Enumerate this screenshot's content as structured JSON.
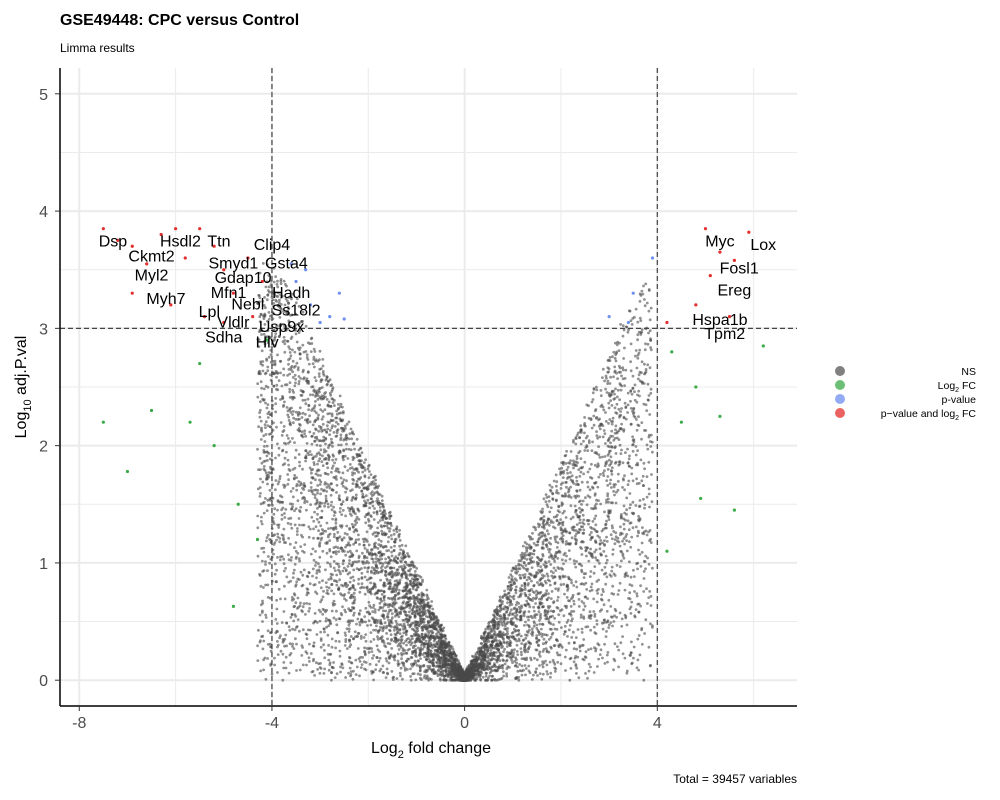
{
  "chart_data": {
    "type": "scatter",
    "title": "GSE49448: CPC versus Control",
    "subtitle": "Limma results",
    "xlabel": "Log2 fold change",
    "ylabel": "Log10 adj.P.val",
    "xlabel_parts": [
      "Log",
      "2",
      " fold change"
    ],
    "ylabel_parts": [
      "Log",
      "10",
      " adj.P.val"
    ],
    "xlim": [
      -8.4,
      6.9
    ],
    "ylim": [
      -0.22,
      5.22
    ],
    "x_ticks": [
      -8,
      -4,
      0,
      4
    ],
    "x_tick_labels": [
      "-8",
      "-4",
      "0",
      "4"
    ],
    "y_ticks": [
      0,
      1,
      2,
      3,
      4,
      5
    ],
    "y_tick_labels": [
      "0",
      "1",
      "2",
      "3",
      "4",
      "5"
    ],
    "grid": true,
    "cutoffs": {
      "log2fc": [
        -4,
        4
      ],
      "log10_adj_pval": 3
    },
    "caption": "Total = 39457 variables",
    "legend": {
      "position": "right",
      "entries": [
        {
          "key": "NS",
          "label": "NS",
          "color": "#555555"
        },
        {
          "key": "log2fc",
          "label": "Log",
          "sub": "2",
          "suffix": " FC",
          "color": "#3bab47"
        },
        {
          "key": "pval",
          "label": "p-value",
          "color": "#6f8ff0"
        },
        {
          "key": "both",
          "label": "p−value and log",
          "sub": "2",
          "suffix": " FC",
          "color": "#e42d2d"
        }
      ]
    },
    "point_summary": {
      "total": 39457,
      "ns_color": "#4a4a4a",
      "log2fc_color": "#3bab47",
      "pval_color": "#6f8ff0",
      "both_color": "#e42d2d"
    },
    "highlighted_points": [
      {
        "x": -7.5,
        "y": 3.85,
        "cat": "both"
      },
      {
        "x": -7.2,
        "y": 3.75,
        "cat": "both"
      },
      {
        "x": -6.9,
        "y": 3.7,
        "cat": "both"
      },
      {
        "x": -6.6,
        "y": 3.55,
        "cat": "both"
      },
      {
        "x": -6.3,
        "y": 3.8,
        "cat": "both"
      },
      {
        "x": -6.0,
        "y": 3.85,
        "cat": "both"
      },
      {
        "x": -5.8,
        "y": 3.6,
        "cat": "both"
      },
      {
        "x": -5.5,
        "y": 3.85,
        "cat": "both"
      },
      {
        "x": -5.2,
        "y": 3.7,
        "cat": "both"
      },
      {
        "x": -5.0,
        "y": 3.5,
        "cat": "both"
      },
      {
        "x": -4.8,
        "y": 3.3,
        "cat": "both"
      },
      {
        "x": -4.5,
        "y": 3.6,
        "cat": "both"
      },
      {
        "x": -4.2,
        "y": 3.4,
        "cat": "both"
      },
      {
        "x": -6.1,
        "y": 3.2,
        "cat": "both"
      },
      {
        "x": -5.4,
        "y": 3.1,
        "cat": "both"
      },
      {
        "x": -6.9,
        "y": 3.3,
        "cat": "both"
      },
      {
        "x": -4.4,
        "y": 3.1,
        "cat": "both"
      },
      {
        "x": -5.0,
        "y": 3.05,
        "cat": "both"
      },
      {
        "x": 5.0,
        "y": 3.85,
        "cat": "both"
      },
      {
        "x": 5.3,
        "y": 3.65,
        "cat": "both"
      },
      {
        "x": 5.6,
        "y": 3.58,
        "cat": "both"
      },
      {
        "x": 5.9,
        "y": 3.82,
        "cat": "both"
      },
      {
        "x": 5.1,
        "y": 3.45,
        "cat": "both"
      },
      {
        "x": 4.8,
        "y": 3.2,
        "cat": "both"
      },
      {
        "x": 4.2,
        "y": 3.05,
        "cat": "both"
      },
      {
        "x": 5.5,
        "y": 3.1,
        "cat": "both"
      },
      {
        "x": -3.5,
        "y": 3.4,
        "cat": "pval"
      },
      {
        "x": -3.2,
        "y": 3.2,
        "cat": "pval"
      },
      {
        "x": -3.0,
        "y": 3.05,
        "cat": "pval"
      },
      {
        "x": -2.8,
        "y": 3.1,
        "cat": "pval"
      },
      {
        "x": -3.6,
        "y": 3.55,
        "cat": "pval"
      },
      {
        "x": -3.3,
        "y": 3.5,
        "cat": "pval"
      },
      {
        "x": -2.6,
        "y": 3.3,
        "cat": "pval"
      },
      {
        "x": -2.5,
        "y": 3.08,
        "cat": "pval"
      },
      {
        "x": 3.0,
        "y": 3.1,
        "cat": "pval"
      },
      {
        "x": 3.5,
        "y": 3.3,
        "cat": "pval"
      },
      {
        "x": 3.9,
        "y": 3.6,
        "cat": "pval"
      },
      {
        "x": 3.4,
        "y": 3.05,
        "cat": "pval"
      },
      {
        "x": -7.5,
        "y": 2.2,
        "cat": "log2fc"
      },
      {
        "x": -6.5,
        "y": 2.3,
        "cat": "log2fc"
      },
      {
        "x": -5.7,
        "y": 2.2,
        "cat": "log2fc"
      },
      {
        "x": -5.2,
        "y": 2.0,
        "cat": "log2fc"
      },
      {
        "x": -4.7,
        "y": 1.5,
        "cat": "log2fc"
      },
      {
        "x": -4.3,
        "y": 1.2,
        "cat": "log2fc"
      },
      {
        "x": -4.8,
        "y": 0.63,
        "cat": "log2fc"
      },
      {
        "x": -5.5,
        "y": 2.7,
        "cat": "log2fc"
      },
      {
        "x": -4.1,
        "y": 2.9,
        "cat": "log2fc"
      },
      {
        "x": -7.0,
        "y": 1.78,
        "cat": "log2fc"
      },
      {
        "x": 4.3,
        "y": 2.8,
        "cat": "log2fc"
      },
      {
        "x": 4.8,
        "y": 2.5,
        "cat": "log2fc"
      },
      {
        "x": 5.3,
        "y": 2.25,
        "cat": "log2fc"
      },
      {
        "x": 5.6,
        "y": 1.45,
        "cat": "log2fc"
      },
      {
        "x": 6.2,
        "y": 2.85,
        "cat": "log2fc"
      },
      {
        "x": 4.2,
        "y": 1.1,
        "cat": "log2fc"
      },
      {
        "x": 4.5,
        "y": 2.2,
        "cat": "log2fc"
      },
      {
        "x": 4.9,
        "y": 1.55,
        "cat": "log2fc"
      }
    ],
    "labeled_genes": [
      {
        "label": "Dsp",
        "x": -7.3,
        "y": 3.75
      },
      {
        "label": "Hsdl2",
        "x": -5.9,
        "y": 3.75
      },
      {
        "label": "Ttn",
        "x": -5.1,
        "y": 3.75
      },
      {
        "label": "Ckmt2",
        "x": -6.5,
        "y": 3.62
      },
      {
        "label": "Clip4",
        "x": -4.0,
        "y": 3.72
      },
      {
        "label": "Smyd1",
        "x": -4.8,
        "y": 3.56
      },
      {
        "label": "Gsta4",
        "x": -3.7,
        "y": 3.56
      },
      {
        "label": "Myl2",
        "x": -6.5,
        "y": 3.46
      },
      {
        "label": "Gdap10",
        "x": -4.6,
        "y": 3.44
      },
      {
        "label": "Mfn1",
        "x": -4.9,
        "y": 3.31
      },
      {
        "label": "Hadh",
        "x": -3.6,
        "y": 3.31
      },
      {
        "label": "Myh7",
        "x": -6.2,
        "y": 3.26
      },
      {
        "label": "Nebl",
        "x": -4.5,
        "y": 3.21
      },
      {
        "label": "Ss18l2",
        "x": -3.5,
        "y": 3.16
      },
      {
        "label": "Lpl",
        "x": -5.3,
        "y": 3.15
      },
      {
        "label": "Vldlr",
        "x": -4.8,
        "y": 3.06
      },
      {
        "label": "Usp9x",
        "x": -3.8,
        "y": 3.02
      },
      {
        "label": "Sdha",
        "x": -5.0,
        "y": 2.93
      },
      {
        "label": "Hlv",
        "x": -4.1,
        "y": 2.89
      },
      {
        "label": "Myc",
        "x": 5.3,
        "y": 3.75
      },
      {
        "label": "Lox",
        "x": 6.2,
        "y": 3.72
      },
      {
        "label": "Fosl1",
        "x": 5.7,
        "y": 3.52
      },
      {
        "label": "Ereg",
        "x": 5.6,
        "y": 3.33
      },
      {
        "label": "Hspa1b",
        "x": 5.3,
        "y": 3.08
      },
      {
        "label": "Tpm2",
        "x": 5.4,
        "y": 2.96
      }
    ]
  }
}
